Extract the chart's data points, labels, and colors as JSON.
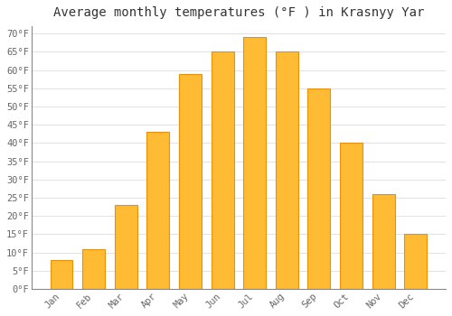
{
  "title": "Average monthly temperatures (°F ) in Krasnyy Yar",
  "months": [
    "Jan",
    "Feb",
    "Mar",
    "Apr",
    "May",
    "Jun",
    "Jul",
    "Aug",
    "Sep",
    "Oct",
    "Nov",
    "Dec"
  ],
  "values": [
    8,
    11,
    23,
    43,
    59,
    65,
    69,
    65,
    55,
    40,
    26,
    15
  ],
  "bar_color_face": "#FFBB33",
  "bar_color_edge": "#E8920A",
  "background_color": "#FFFFFF",
  "plot_bg_color": "#FFFFFF",
  "grid_color": "#DDDDDD",
  "ylim": [
    0,
    72
  ],
  "yticks": [
    0,
    5,
    10,
    15,
    20,
    25,
    30,
    35,
    40,
    45,
    50,
    55,
    60,
    65,
    70
  ],
  "ytick_labels": [
    "0°F",
    "5°F",
    "10°F",
    "15°F",
    "20°F",
    "25°F",
    "30°F",
    "35°F",
    "40°F",
    "45°F",
    "50°F",
    "55°F",
    "60°F",
    "65°F",
    "70°F"
  ],
  "title_fontsize": 10,
  "tick_fontsize": 7.5,
  "font_family": "monospace",
  "tick_color": "#666666"
}
